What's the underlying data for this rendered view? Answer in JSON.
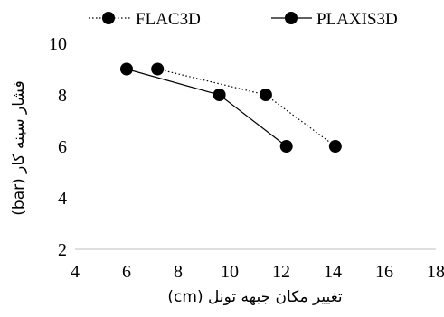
{
  "chart_data": {
    "type": "line",
    "xlabel": "تغییر مکان جبهه تونل (cm)",
    "ylabel": "فشار سینه کار (bar)",
    "xlim": [
      4,
      18
    ],
    "ylim": [
      2,
      10
    ],
    "x_ticks": [
      "4",
      "6",
      "8",
      "10",
      "12",
      "14",
      "16",
      "18"
    ],
    "y_ticks": [
      "2",
      "4",
      "6",
      "8",
      "10"
    ],
    "grid": false,
    "legend_position": "top",
    "series": [
      {
        "name": "FLAC3D",
        "line_style": "dotted",
        "color": "#000000",
        "marker": "circle",
        "x": [
          7.2,
          11.4,
          14.1
        ],
        "y": [
          9,
          8,
          6
        ]
      },
      {
        "name": "PLAXIS3D",
        "line_style": "solid",
        "color": "#000000",
        "marker": "circle",
        "x": [
          6.0,
          9.6,
          12.2
        ],
        "y": [
          9,
          8,
          6
        ]
      }
    ]
  }
}
